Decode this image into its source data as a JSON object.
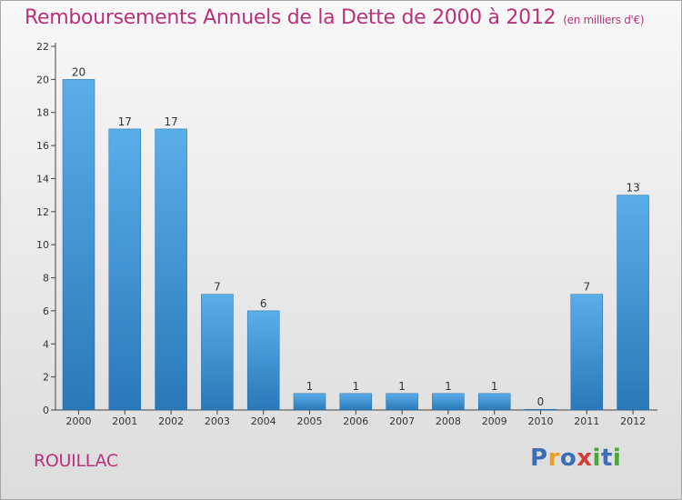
{
  "title": "Remboursements Annuels de la Dette de 2000 à 2012",
  "unit": "(en milliers d'€)",
  "commune": "ROUILLAC",
  "logo": {
    "text": "Proxiti",
    "letters": [
      {
        "char": "P",
        "color": "#3a6fb8"
      },
      {
        "char": "r",
        "color": "#e8a020"
      },
      {
        "char": "o",
        "color": "#3a6fb8"
      },
      {
        "char": "x",
        "color": "#d93a3a"
      },
      {
        "char": "i",
        "color": "#4aa83a"
      },
      {
        "char": "t",
        "color": "#3a6fb8"
      },
      {
        "char": "i",
        "color": "#4aa83a"
      }
    ]
  },
  "colors": {
    "title": "#b8327a",
    "bar_top": "#5aaeea",
    "bar_bottom": "#2a78b8",
    "axis": "#444444"
  },
  "chart_data": {
    "type": "bar",
    "title": "Remboursements Annuels de la Dette de 2000 à 2012",
    "xlabel": "",
    "ylabel": "(en milliers d'€)",
    "categories": [
      "2000",
      "2001",
      "2002",
      "2003",
      "2004",
      "2005",
      "2006",
      "2007",
      "2008",
      "2009",
      "2010",
      "2011",
      "2012"
    ],
    "values": [
      20,
      17,
      17,
      7,
      6,
      1,
      1,
      1,
      1,
      1,
      0,
      7,
      13
    ],
    "data_labels": [
      "20",
      "17",
      "17",
      "7",
      "6",
      "1",
      "1",
      "1",
      "1",
      "1",
      "0",
      "7",
      "13"
    ],
    "ylim": [
      0,
      22
    ],
    "yticks": [
      0,
      2,
      4,
      6,
      8,
      10,
      12,
      14,
      16,
      18,
      20,
      22
    ],
    "grid": false,
    "legend": "none"
  }
}
